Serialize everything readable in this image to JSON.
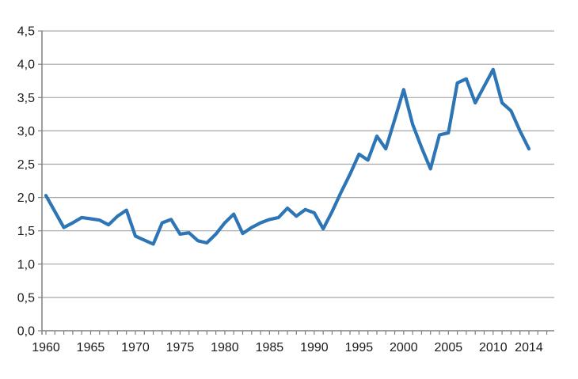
{
  "chart_data": {
    "type": "line",
    "title": "",
    "xlabel": "",
    "ylabel": "",
    "x": [
      1960,
      1961,
      1962,
      1963,
      1964,
      1965,
      1966,
      1967,
      1968,
      1969,
      1970,
      1971,
      1972,
      1973,
      1974,
      1975,
      1976,
      1977,
      1978,
      1979,
      1980,
      1981,
      1982,
      1983,
      1984,
      1985,
      1986,
      1987,
      1988,
      1989,
      1990,
      1991,
      1992,
      1993,
      1994,
      1995,
      1996,
      1997,
      1998,
      1999,
      2000,
      2001,
      2002,
      2003,
      2004,
      2005,
      2006,
      2007,
      2008,
      2009,
      2010,
      2011,
      2012,
      2013,
      2014
    ],
    "values": [
      2.03,
      1.79,
      1.55,
      1.62,
      1.7,
      1.68,
      1.66,
      1.59,
      1.72,
      1.81,
      1.42,
      1.36,
      1.3,
      1.62,
      1.67,
      1.45,
      1.47,
      1.35,
      1.32,
      1.45,
      1.62,
      1.75,
      1.46,
      1.55,
      1.62,
      1.67,
      1.7,
      1.84,
      1.72,
      1.82,
      1.77,
      1.53,
      1.79,
      2.08,
      2.35,
      2.65,
      2.56,
      2.92,
      2.73,
      3.17,
      3.62,
      3.1,
      2.75,
      2.43,
      2.94,
      2.97,
      3.72,
      3.78,
      3.42,
      3.67,
      3.92,
      3.42,
      3.3,
      3.0,
      2.73
    ],
    "ylim": [
      0.0,
      4.5
    ],
    "ytick_step": 0.5,
    "ytick_labels": [
      "0,0",
      "0,5",
      "1,0",
      "1,5",
      "2,0",
      "2,5",
      "3,0",
      "3,5",
      "4,0",
      "4,5"
    ],
    "xtick_labels": [
      "1960",
      "1965",
      "1970",
      "1975",
      "1980",
      "1985",
      "1990",
      "1995",
      "2000",
      "2005",
      "2010",
      "2014"
    ],
    "xtick_label_years": [
      1960,
      1965,
      1970,
      1975,
      1980,
      1985,
      1990,
      1995,
      2000,
      2005,
      2010,
      2014
    ],
    "decimal_separator": ",",
    "grid": true,
    "legend": "none",
    "colors": {
      "series_line": "#2E75B6",
      "gridline": "#A6A6A6",
      "axis_line": "#808080",
      "tick_label_text": "#1a1a1a",
      "background": "#ffffff"
    }
  }
}
